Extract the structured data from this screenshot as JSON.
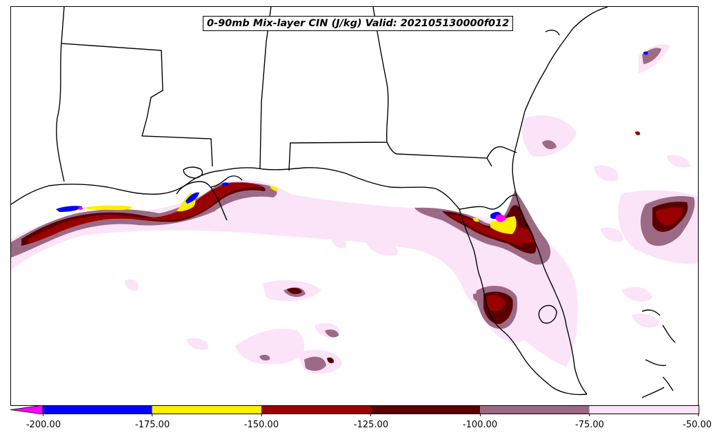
{
  "title": "0-90mb Mix-layer CIN (J/kg) Valid: 202105130000f012",
  "map": {
    "region": "US Gulf Coast and Florida",
    "overlay": "filled contours of CIN over state boundaries",
    "colors": {
      "extend_min": "#ff00ff",
      "bin_200_175": "#0000ff",
      "bin_175_150": "#ffee00",
      "bin_150_125": "#990000",
      "bin_125_100": "#5a0000",
      "bin_100_75": "#9c6a85",
      "bin_75_50": "#fbe3f8",
      "land": "#ffffff",
      "water": "#ffffff",
      "boundary": "#000000"
    }
  },
  "colorbar": {
    "extend": "min",
    "bins": [
      {
        "from": -200,
        "to": -175,
        "color": "#0000ff"
      },
      {
        "from": -175,
        "to": -150,
        "color": "#ffee00"
      },
      {
        "from": -150,
        "to": -125,
        "color": "#990000"
      },
      {
        "from": -125,
        "to": -100,
        "color": "#5a0000"
      },
      {
        "from": -100,
        "to": -75,
        "color": "#9c6a85"
      },
      {
        "from": -75,
        "to": -50,
        "color": "#fbe3f8"
      }
    ],
    "ticks": [
      "-200.00",
      "-175.00",
      "-150.00",
      "-125.00",
      "-100.00",
      "-75.00",
      "-50.00"
    ]
  }
}
